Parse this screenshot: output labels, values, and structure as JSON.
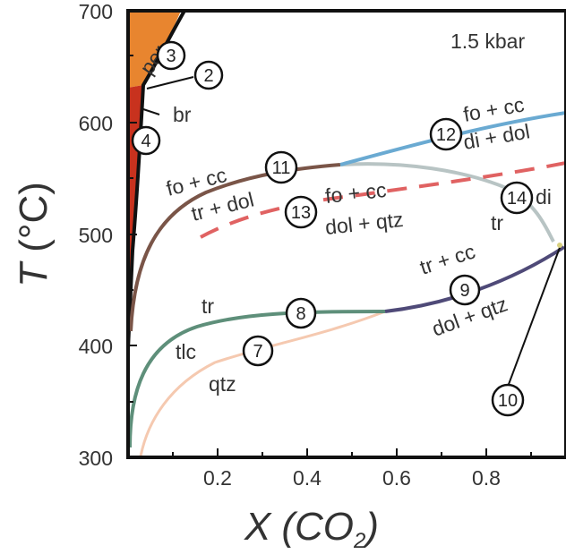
{
  "axes": {
    "x_title_var": "X",
    "x_title_open": "(CO",
    "x_title_sub": "2",
    "x_title_close": ")",
    "y_title_var": "T",
    "y_title_unit": " (°C)",
    "x_ticks": [
      "0.2",
      "0.4",
      "0.6",
      "0.8"
    ],
    "y_ticks": [
      "300",
      "400",
      "500",
      "600",
      "700"
    ]
  },
  "pressure_label": "1.5 kbar",
  "field_labels": {
    "per": "per",
    "br": "br",
    "fo_cc_left": "fo + cc",
    "tr_dol": "tr + dol",
    "fo_cc_mid": "fo + cc",
    "dol_qtz_mid": "dol + qtz",
    "fo_cc_right": "fo + cc",
    "di_dol": "di + dol",
    "di": "di",
    "tr_right": "tr",
    "tr_cc": "tr + cc",
    "dol_qtz_right": "dol + qtz",
    "tr_left": "tr",
    "tlc": "tlc",
    "qtz": "qtz"
  },
  "reaction_numbers": [
    "2",
    "3",
    "4",
    "7",
    "8",
    "9",
    "10",
    "11",
    "12",
    "13",
    "14"
  ],
  "colors": {
    "periclase_field": "#e8852f",
    "brucite_field": "#c8321e",
    "reaction_11": "#7a5548",
    "reaction_12": "#6aaad2",
    "reaction_11_14": "#b8c4c4",
    "reaction_13": "#e06262",
    "reaction_8": "#5e8f7a",
    "reaction_9": "#4f4a78",
    "reaction_7": "#f5c9b0",
    "boundary": "#111111"
  }
}
